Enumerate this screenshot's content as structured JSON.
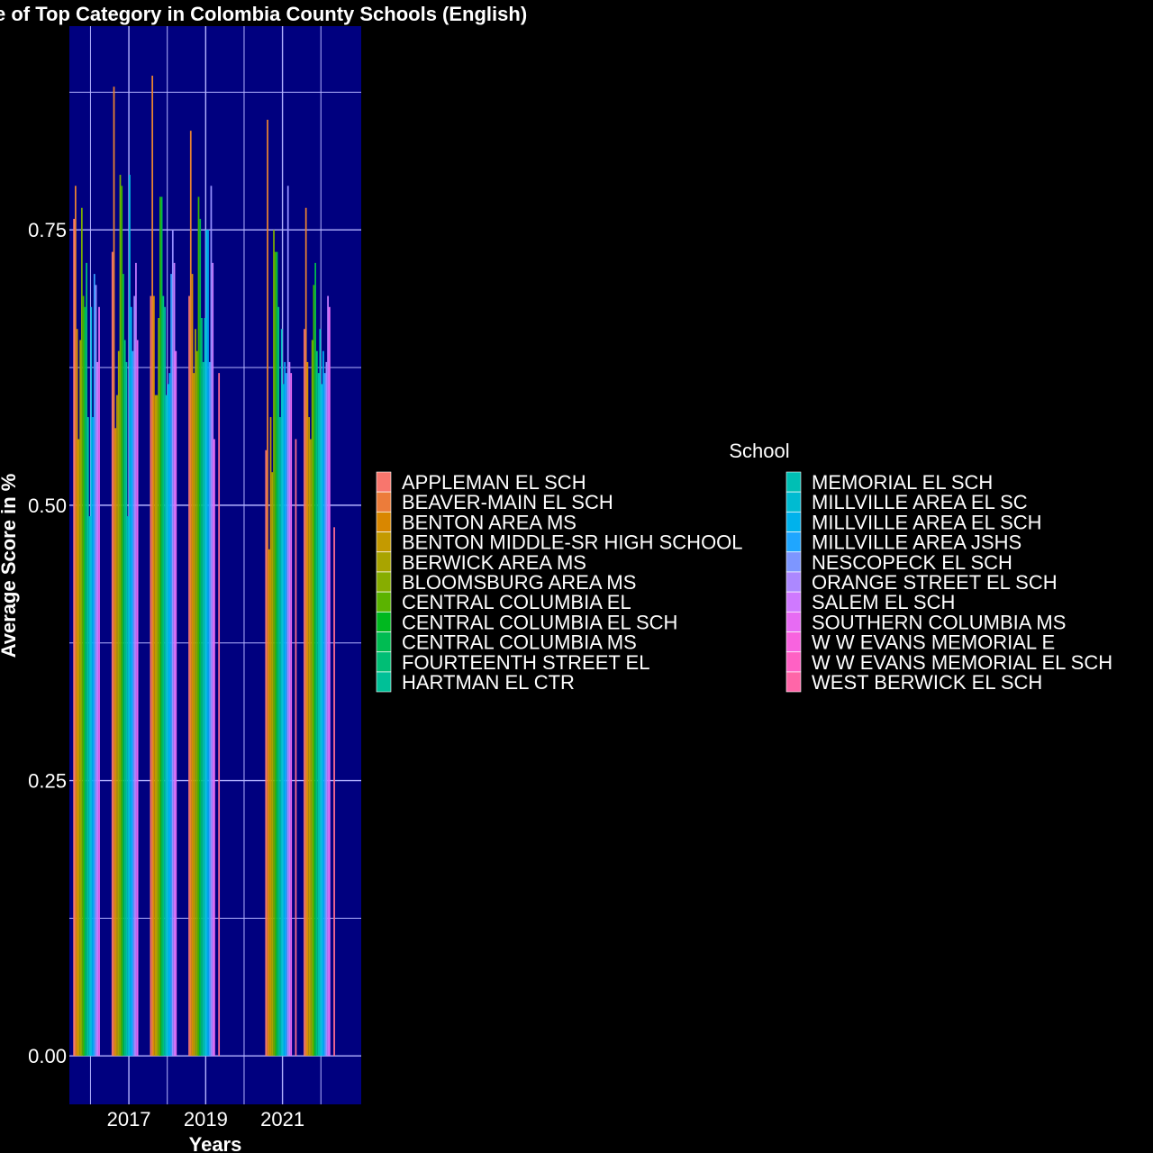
{
  "chart_data": {
    "type": "bar",
    "title": "e of Top Category in Colombia County Schools (English)",
    "xlabel": "Years",
    "ylabel": "Average Score in %",
    "x_tick_labels": [
      "2017",
      "2019",
      "2021"
    ],
    "x_tick_values": [
      2017,
      2019,
      2021
    ],
    "xlim": [
      2015.45,
      2023.05
    ],
    "y_tick_labels": [
      "0.00",
      "0.25",
      "0.50",
      "0.75"
    ],
    "y_tick_values": [
      0,
      0.25,
      0.5,
      0.75
    ],
    "ylim": [
      -0.044,
      0.935
    ],
    "panel_background": "#00007F",
    "grid_color": "#B3B3FF",
    "categories": [
      2016,
      2017,
      2018,
      2019,
      2020,
      2021,
      2022
    ],
    "legend_title": "School",
    "legend_position": "right",
    "series": [
      {
        "name": "APPLEMAN EL SCH",
        "color": "#F8766D",
        "values": [
          0.76,
          0.73,
          0.69,
          0.69,
          null,
          0.55,
          0.66
        ]
      },
      {
        "name": "BEAVER-MAIN EL SCH",
        "color": "#EA8331",
        "values": [
          0.79,
          0.88,
          0.89,
          0.84,
          null,
          0.85,
          0.77
        ]
      },
      {
        "name": "BENTON AREA MS",
        "color": "#D89000",
        "values": [
          0.66,
          0.57,
          0.69,
          0.71,
          null,
          0.46,
          0.63
        ]
      },
      {
        "name": "BENTON MIDDLE-SR HIGH SCHOOL",
        "color": "#C09B00",
        "values": [
          0.56,
          0.6,
          0.6,
          0.62,
          null,
          0.58,
          0.58
        ]
      },
      {
        "name": "BERWICK AREA MS",
        "color": "#A3A500",
        "values": [
          0.65,
          0.64,
          0.6,
          0.66,
          null,
          0.53,
          0.56
        ]
      },
      {
        "name": "BLOOMSBURG AREA MS",
        "color": "#7CAE00",
        "values": [
          0.77,
          0.8,
          0.67,
          0.64,
          null,
          0.75,
          0.65
        ]
      },
      {
        "name": "CENTRAL COLUMBIA EL",
        "color": "#39B600",
        "values": [
          0.69,
          0.79,
          0.78,
          0.78,
          null,
          0.73,
          0.7
        ]
      },
      {
        "name": "CENTRAL COLUMBIA EL SCH",
        "color": "#00BB4E",
        "values": [
          0.68,
          0.71,
          0.78,
          0.76,
          null,
          0.73,
          0.72
        ]
      },
      {
        "name": "CENTRAL COLUMBIA MS",
        "color": "#00BF7D",
        "values": [
          0.72,
          0.65,
          0.69,
          0.67,
          null,
          0.68,
          0.64
        ]
      },
      {
        "name": "FOURTEENTH STREET EL",
        "color": "#00C1A3",
        "values": [
          0.58,
          0.63,
          0.68,
          0.63,
          null,
          0.58,
          0.62
        ]
      },
      {
        "name": "HARTMAN EL CTR",
        "color": "#00BFC4",
        "values": [
          0.49,
          0.49,
          0.6,
          0.67,
          null,
          0.66,
          0.66
        ]
      },
      {
        "name": "MEMORIAL EL SCH",
        "color": "#00BAE0",
        "values": [
          0.68,
          0.8,
          0.61,
          0.75,
          null,
          0.61,
          0.61
        ]
      },
      {
        "name": "MILLVILLE AREA EL SC",
        "color": "#00B0F6",
        "values": [
          0.58,
          0.68,
          0.62,
          0.75,
          null,
          0.63,
          0.64
        ]
      },
      {
        "name": "MILLVILLE AREA EL SCH",
        "color": "#35A2FF",
        "values": [
          0.71,
          0.64,
          0.71,
          0.63,
          null,
          0.62,
          0.62
        ]
      },
      {
        "name": "MILLVILLE AREA JSHS",
        "color": "#9590FF",
        "values": [
          0.7,
          0.69,
          0.75,
          0.79,
          null,
          0.79,
          0.63
        ]
      },
      {
        "name": "NESCOPECK EL SCH",
        "color": "#C77CFF",
        "values": [
          0.63,
          0.72,
          0.72,
          0.72,
          null,
          0.63,
          0.69
        ]
      },
      {
        "name": "ORANGE STREET EL SCH",
        "color": "#E76BF3",
        "values": [
          0.68,
          0.65,
          0.64,
          0.56,
          null,
          0.62,
          0.68
        ]
      },
      {
        "name": "SALEM EL SCH",
        "color": "#FA62DB",
        "values": [
          null,
          null,
          null,
          null,
          null,
          null,
          null
        ]
      },
      {
        "name": "SOUTHERN COLUMBIA MS",
        "color": "#FF62BC",
        "values": [
          null,
          null,
          null,
          null,
          null,
          null,
          null
        ]
      },
      {
        "name": "W W EVANS MEMORIAL E",
        "color": "#FF6C91",
        "values": [
          null,
          null,
          null,
          0.62,
          null,
          0.56,
          0.48
        ]
      },
      {
        "name": "W W EVANS MEMORIAL EL SCH",
        "color": "#FF4FA0",
        "values": [
          null,
          null,
          null,
          null,
          null,
          null,
          null
        ]
      },
      {
        "name": "WEST BERWICK EL SCH",
        "color": "#FF6C91",
        "values": [
          null,
          null,
          null,
          null,
          null,
          null,
          null
        ]
      }
    ],
    "legend_items": [
      {
        "label": "APPLEMAN EL SCH",
        "color": "#F8766D"
      },
      {
        "label": "BEAVER-MAIN EL SCH",
        "color": "#EC7C3A"
      },
      {
        "label": "BENTON AREA MS",
        "color": "#D98700"
      },
      {
        "label": "BENTON MIDDLE-SR HIGH SCHOOL",
        "color": "#C49A00"
      },
      {
        "label": "BERWICK AREA MS",
        "color": "#A9A400"
      },
      {
        "label": "BLOOMSBURG AREA MS",
        "color": "#87AD00"
      },
      {
        "label": "CENTRAL COLUMBIA EL",
        "color": "#5BB300"
      },
      {
        "label": "CENTRAL COLUMBIA EL SCH",
        "color": "#00B81F"
      },
      {
        "label": "CENTRAL COLUMBIA MS",
        "color": "#00BC52"
      },
      {
        "label": "FOURTEENTH STREET EL",
        "color": "#00BE75"
      },
      {
        "label": "HARTMAN EL CTR",
        "color": "#00C097"
      },
      {
        "label": "MEMORIAL EL SCH",
        "color": "#00BFB4"
      },
      {
        "label": "MILLVILLE AREA EL SC",
        "color": "#00BBD1"
      },
      {
        "label": "MILLVILLE AREA EL SCH",
        "color": "#00B2EC"
      },
      {
        "label": "MILLVILLE AREA JSHS",
        "color": "#1FA6FF"
      },
      {
        "label": "NESCOPECK EL SCH",
        "color": "#7D96FF"
      },
      {
        "label": "ORANGE STREET EL SCH",
        "color": "#AC88FF"
      },
      {
        "label": "SALEM EL SCH",
        "color": "#CF79FF"
      },
      {
        "label": "SOUTHERN COLUMBIA MS",
        "color": "#E76BF3"
      },
      {
        "label": "W W EVANS MEMORIAL E",
        "color": "#F863DF"
      },
      {
        "label": "W W EVANS MEMORIAL EL SCH",
        "color": "#FF61C4"
      },
      {
        "label": "WEST BERWICK EL SCH",
        "color": "#FF66A8"
      }
    ]
  }
}
